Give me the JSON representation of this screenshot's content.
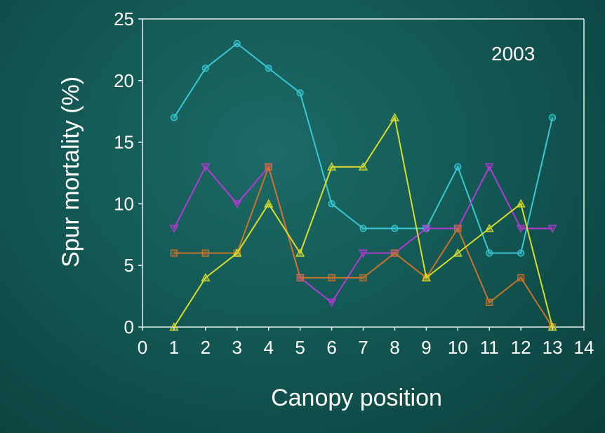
{
  "chart_data": {
    "type": "line",
    "annotation": "2003",
    "xlabel": "Canopy position",
    "ylabel": "Spur mortality (%)",
    "xlim": [
      0,
      14
    ],
    "ylim": [
      0,
      25
    ],
    "x_ticks": [
      "0",
      "1",
      "2",
      "3",
      "4",
      "5",
      "6",
      "7",
      "8",
      "9",
      "10",
      "11",
      "12",
      "13",
      "14"
    ],
    "y_ticks": [
      "0",
      "5",
      "10",
      "15",
      "20",
      "25"
    ],
    "grid": false,
    "legend": "none",
    "x": [
      1,
      2,
      3,
      4,
      5,
      6,
      7,
      8,
      9,
      10,
      11,
      12,
      13
    ],
    "series": [
      {
        "color": "#38c8d4",
        "marker": "circle",
        "values": [
          17,
          21,
          23,
          21,
          19,
          10,
          8,
          8,
          8,
          13,
          6,
          6,
          17
        ]
      },
      {
        "color": "#b23ad6",
        "marker": "triangle-down",
        "values": [
          8,
          13,
          10,
          13,
          4,
          2,
          6,
          6,
          8,
          8,
          13,
          8,
          8
        ]
      },
      {
        "color": "#c8742a",
        "marker": "square",
        "values": [
          6,
          6,
          6,
          13,
          4,
          4,
          4,
          6,
          4,
          8,
          2,
          4,
          0
        ]
      },
      {
        "color": "#d8dd2a",
        "marker": "triangle-up",
        "values": [
          0,
          4,
          6,
          10,
          6,
          13,
          13,
          17,
          4,
          6,
          8,
          10,
          0
        ]
      }
    ]
  }
}
